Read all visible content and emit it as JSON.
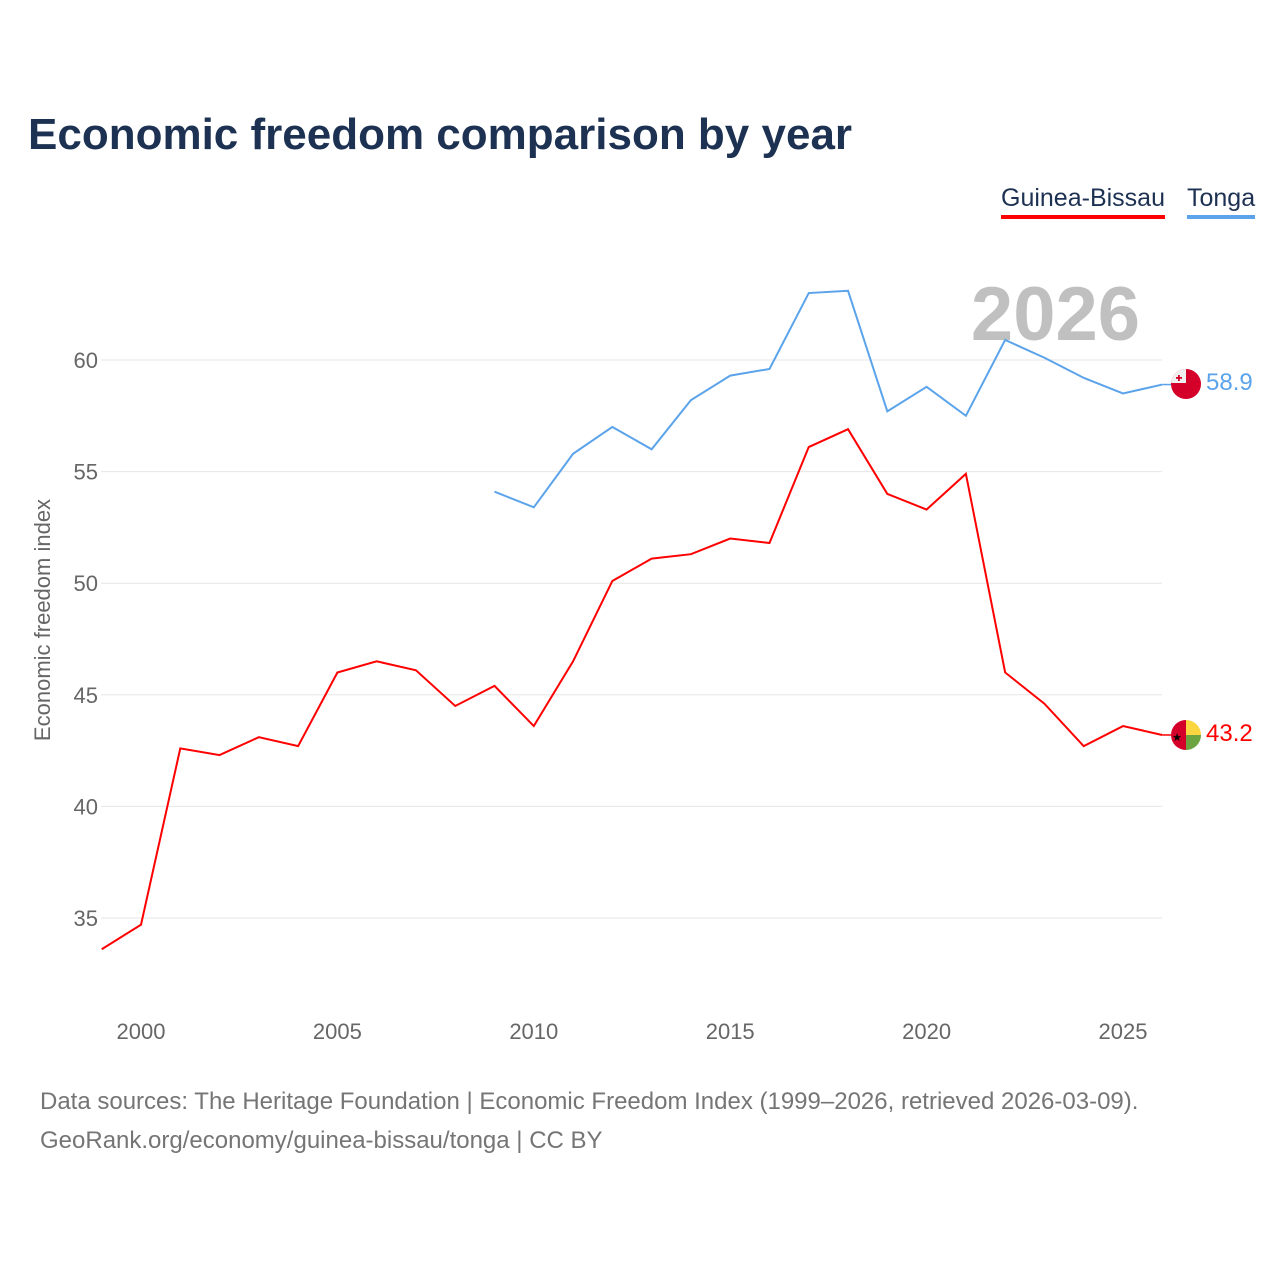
{
  "chart_data": {
    "type": "line",
    "title": "Economic freedom comparison by year",
    "ylabel": "Economic freedom index",
    "xlabel": "",
    "xlim": [
      1999,
      2026
    ],
    "ylim": [
      32,
      64
    ],
    "xticks": [
      2000,
      2005,
      2010,
      2015,
      2020,
      2025
    ],
    "yticks": [
      35,
      40,
      45,
      50,
      55,
      60
    ],
    "grid": true,
    "legend_placement": "top-right",
    "year_watermark": "2026",
    "series": [
      {
        "name": "Guinea-Bissau",
        "color": "#ff0000",
        "end_label": "43.2",
        "x": [
          1999,
          2000,
          2001,
          2002,
          2003,
          2004,
          2005,
          2006,
          2007,
          2008,
          2009,
          2010,
          2011,
          2012,
          2013,
          2014,
          2015,
          2016,
          2017,
          2018,
          2019,
          2020,
          2021,
          2022,
          2023,
          2024,
          2025,
          2026
        ],
        "values": [
          33.6,
          34.7,
          42.6,
          42.3,
          43.1,
          42.7,
          46.0,
          46.5,
          46.1,
          44.5,
          45.4,
          43.6,
          46.5,
          50.1,
          51.1,
          51.3,
          52.0,
          51.8,
          56.1,
          56.9,
          54.0,
          53.3,
          54.9,
          46.0,
          44.6,
          42.7,
          43.6,
          43.2
        ]
      },
      {
        "name": "Tonga",
        "color": "#5ba3ea",
        "end_label": "58.9",
        "x": [
          2009,
          2010,
          2011,
          2012,
          2013,
          2014,
          2015,
          2016,
          2017,
          2018,
          2019,
          2020,
          2021,
          2022,
          2023,
          2024,
          2025,
          2026
        ],
        "values": [
          54.1,
          53.4,
          55.8,
          57.0,
          56.0,
          58.2,
          59.3,
          59.6,
          63.0,
          63.1,
          57.7,
          58.8,
          57.5,
          60.9,
          60.1,
          59.2,
          58.5,
          58.9
        ]
      }
    ]
  },
  "source_line1": "Data sources: The Heritage Foundation | Economic Freedom Index (1999–2026, retrieved 2026-03-09).",
  "source_line2": "GeoRank.org/economy/guinea-bissau/tonga | CC BY"
}
